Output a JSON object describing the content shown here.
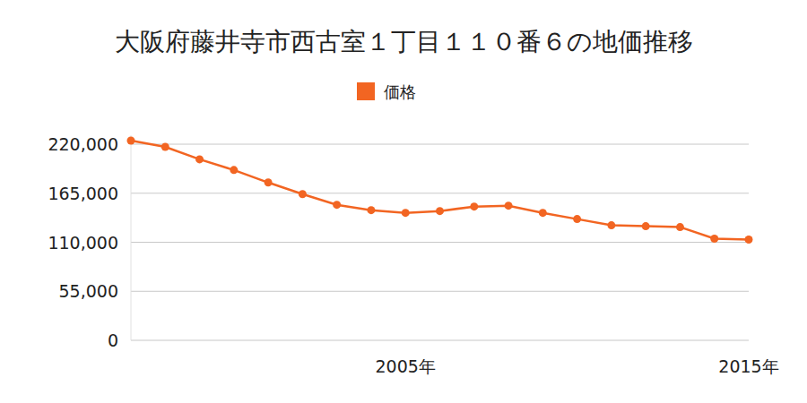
{
  "chart_data": {
    "type": "line",
    "title": "大阪府藤井寺市西古室１丁目１１０番６の地価推移",
    "categories": [
      null,
      null,
      null,
      null,
      null,
      null,
      null,
      null,
      "2005年",
      null,
      null,
      null,
      null,
      null,
      null,
      null,
      null,
      null,
      "2015年"
    ],
    "series": [
      {
        "name": "価格",
        "color": "#f26522",
        "marker": "circle",
        "values": [
          224000,
          217000,
          203000,
          191000,
          177000,
          164000,
          152000,
          146000,
          143000,
          145000,
          150000,
          151000,
          143000,
          136000,
          129000,
          128000,
          127000,
          114000,
          113000
        ]
      }
    ],
    "ylim": [
      0,
      230000
    ],
    "yticks": [
      0,
      {
        "value": 55000,
        "label": "55,000"
      },
      {
        "value": 110000,
        "label": "110,000"
      },
      {
        "value": 165000,
        "label": "165,000"
      },
      {
        "value": 220000,
        "label": "220,000"
      }
    ],
    "grid": true,
    "legend": "top"
  }
}
